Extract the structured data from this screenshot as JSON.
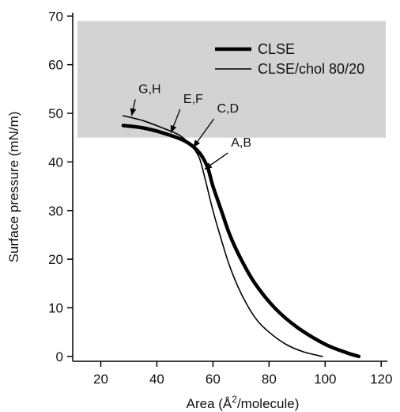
{
  "chart_data": {
    "type": "line",
    "xlabel_main": "Area (Å",
    "xlabel_sup": "2",
    "xlabel_tail": "/molecule)",
    "ylabel": "Surface pressure (mN/m)",
    "xlim": [
      10,
      125
    ],
    "ylim": [
      -1,
      72
    ],
    "x_ticks": [
      20,
      40,
      60,
      80,
      100,
      120
    ],
    "y_ticks": [
      0,
      10,
      20,
      30,
      40,
      50,
      60,
      70
    ],
    "grid": false,
    "legend_position": "top-right",
    "shaded_region": {
      "y_from": 45,
      "y_to": 69,
      "color": "#d3d3d3"
    },
    "series": [
      {
        "name": "CLSE",
        "line": "thick",
        "color": "#000000",
        "points": [
          [
            28,
            47.5
          ],
          [
            35,
            47
          ],
          [
            42,
            46
          ],
          [
            50,
            44.3
          ],
          [
            55,
            42
          ],
          [
            58,
            39
          ],
          [
            60,
            35
          ],
          [
            63,
            30
          ],
          [
            66,
            25
          ],
          [
            70,
            20
          ],
          [
            75,
            15
          ],
          [
            82,
            10
          ],
          [
            90,
            6
          ],
          [
            100,
            2.5
          ],
          [
            108,
            0.7
          ],
          [
            112,
            0
          ]
        ]
      },
      {
        "name": "CLSE/chol 80/20",
        "line": "thin",
        "color": "#000000",
        "points": [
          [
            28,
            49.5
          ],
          [
            35,
            48.5
          ],
          [
            42,
            47
          ],
          [
            48,
            45.5
          ],
          [
            52,
            43.5
          ],
          [
            55,
            41
          ],
          [
            57,
            37
          ],
          [
            60,
            30
          ],
          [
            63,
            24
          ],
          [
            66,
            18.5
          ],
          [
            70,
            13
          ],
          [
            75,
            8
          ],
          [
            80,
            5
          ],
          [
            86,
            2.5
          ],
          [
            92,
            1
          ],
          [
            99,
            0
          ]
        ]
      }
    ],
    "annotations": [
      {
        "text": "G,H",
        "x": 31,
        "y": 49.5,
        "label_x": 34,
        "label_y": 53.5
      },
      {
        "text": "E,F",
        "x": 45,
        "y": 46,
        "label_x": 50,
        "label_y": 51.5
      },
      {
        "text": "C,D",
        "x": 53,
        "y": 43,
        "label_x": 62,
        "label_y": 49.5
      },
      {
        "text": "A,B",
        "x": 57,
        "y": 38.5,
        "label_x": 67,
        "label_y": 42.5
      }
    ]
  }
}
